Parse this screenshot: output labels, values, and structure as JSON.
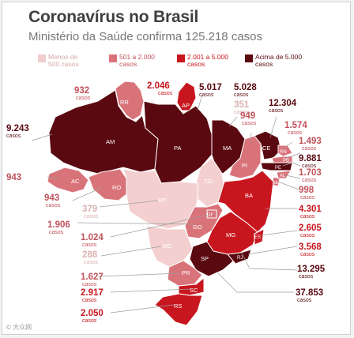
{
  "header": {
    "title": "Coronavírus no Brasil",
    "subtitle": "Ministério da Saúde confirma 125.218 casos"
  },
  "legend": [
    {
      "label": "Menos de 500 casos",
      "color": "#f2cdcd",
      "text_color": "#d9a8a8"
    },
    {
      "label": "501 a 2.000 casos",
      "color": "#d9737a",
      "text_color": "#c0525a"
    },
    {
      "label": "2.001 a 5.000 casos",
      "color": "#c8151d",
      "text_color": "#c8151d"
    },
    {
      "label": "Acima de 5.000 casos",
      "color": "#5a0a10",
      "text_color": "#5a0a10"
    }
  ],
  "palette": {
    "lt500": "#f4cfcf",
    "m500_2000": "#d9737a",
    "m2001_5000": "#c8161f",
    "gt5000": "#5a0910",
    "text_lt500": "#dbb1b1",
    "text_mid": "#c0525a",
    "text_high": "#c8161f",
    "text_top": "#5a0910"
  },
  "states": {
    "RR": "RR",
    "AP": "AP",
    "AM": "AM",
    "PA": "PA",
    "MA": "MA",
    "CE": "CE",
    "RN": "RN",
    "PB": "PB",
    "PE": "PE",
    "PI": "PI",
    "AL": "AL",
    "SE": "SE",
    "AC": "AC",
    "RO": "RO",
    "TO": "TO",
    "BA": "BA",
    "MT": "MT",
    "DF": "DF",
    "GO": "GO",
    "MG": "MG",
    "ES": "ES",
    "MS": "MS",
    "SP": "SP",
    "RJ": "RJ",
    "PR": "PR",
    "SC": "SC",
    "RS": "RS"
  },
  "unit": "casos",
  "cases": {
    "RR": "932",
    "AP": "2.046",
    "PA": "5.017",
    "MA": "5.028",
    "CE": "12.304",
    "TO": "351",
    "PI": "949",
    "RN": "1.574",
    "PB": "1.493",
    "PE": "9.881",
    "AL": "1.703",
    "SE": "998",
    "AM": "9.243",
    "AC": "943",
    "RO": "943",
    "BA": "4.301",
    "MT": "379",
    "ES": "2.605",
    "GO": "1.906",
    "DF": "1.024",
    "RJ": "3.568",
    "MS": "288",
    "MG": "13.295",
    "PR": "1.627",
    "SP": "37.853",
    "SC": "2.917",
    "RS": "2.050"
  },
  "watermark": "© 大众网"
}
